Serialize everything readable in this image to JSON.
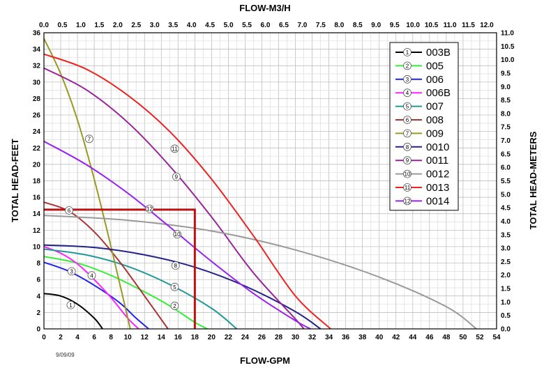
{
  "chart_data": {
    "type": "line",
    "xlabel": "FLOW-GPM",
    "ylabel": "TOTAL HEAD-FEET",
    "x2label": "FLOW-M3/H",
    "y2label": "TOTAL HEAD-METERS",
    "xlim": [
      0,
      54
    ],
    "ylim": [
      0,
      36
    ],
    "x2lim": [
      0,
      12
    ],
    "y2lim": [
      0,
      11
    ],
    "x_ticks": [
      0,
      2,
      4,
      6,
      8,
      10,
      12,
      14,
      16,
      18,
      20,
      22,
      24,
      26,
      28,
      30,
      32,
      34,
      36,
      38,
      40,
      42,
      44,
      46,
      48,
      50,
      52,
      54
    ],
    "y_ticks": [
      0,
      2,
      4,
      6,
      8,
      10,
      12,
      14,
      16,
      18,
      20,
      22,
      24,
      26,
      28,
      30,
      32,
      34,
      36
    ],
    "x2_ticks": [
      "0.0",
      "0.5",
      "1.0",
      "1.5",
      "2.0",
      "2.5",
      "3.0",
      "3.5",
      "4.0",
      "4.5",
      "5.0",
      "5.5",
      "6.0",
      "6.5",
      "7.0",
      "7.5",
      "8.0",
      "8.5",
      "9.0",
      "9.5",
      "10.0",
      "10.5",
      "11.0",
      "11.5",
      "12.0"
    ],
    "y2_ticks": [
      "0.0",
      "0.5",
      "1.0",
      "1.5",
      "2.0",
      "2.5",
      "3.0",
      "3.5",
      "4.0",
      "4.5",
      "5.0",
      "5.5",
      "6.0",
      "6.5",
      "7.0",
      "7.5",
      "8.0",
      "8.5",
      "9.0",
      "9.5",
      "10.0",
      "10.5",
      "11.0"
    ],
    "grid": true,
    "legend_position": "top-right",
    "date_label": "9/09/09",
    "series": [
      {
        "name": "003B",
        "marker": "1",
        "color": "#000000",
        "x": [
          0,
          2,
          4,
          6,
          7
        ],
        "y": [
          4.3,
          4.0,
          3.0,
          1.3,
          0
        ],
        "marker_at": [
          3.2,
          2.9
        ]
      },
      {
        "name": "005",
        "marker": "2",
        "color": "#33ee33",
        "x": [
          0,
          4,
          8,
          12,
          15,
          18,
          19.5
        ],
        "y": [
          8.8,
          8.0,
          6.5,
          4.5,
          2.8,
          0.8,
          0
        ],
        "marker_at": [
          15.6,
          2.8
        ]
      },
      {
        "name": "006",
        "marker": "3",
        "color": "#2222ee",
        "x": [
          0,
          3,
          6,
          9,
          11,
          12.5
        ],
        "y": [
          8.1,
          7.0,
          5.3,
          3.2,
          1.3,
          0
        ],
        "marker_at": [
          3.3,
          7.0
        ]
      },
      {
        "name": "006B",
        "marker": "4",
        "color": "#ff22ff",
        "x": [
          0,
          2,
          4,
          6,
          8,
          10,
          11.3
        ],
        "y": [
          10.0,
          9.2,
          7.9,
          6.0,
          3.8,
          1.3,
          0
        ],
        "marker_at": [
          5.7,
          6.5
        ]
      },
      {
        "name": "007",
        "marker": "5",
        "color": "#229999",
        "x": [
          0,
          5,
          10,
          15,
          20,
          23
        ],
        "y": [
          9.7,
          9.0,
          7.6,
          5.4,
          2.5,
          0
        ],
        "marker_at": [
          15.6,
          5.1
        ]
      },
      {
        "name": "008",
        "marker": "6",
        "color": "#aa3333",
        "x": [
          0,
          3,
          6,
          9,
          12,
          14.8
        ],
        "y": [
          15.4,
          14.3,
          11.8,
          8.2,
          4.0,
          0
        ],
        "marker_at": [
          3.0,
          14.4
        ]
      },
      {
        "name": "009",
        "marker": "7",
        "color": "#999922",
        "x": [
          0,
          2,
          4,
          6,
          8,
          10.3
        ],
        "y": [
          35.3,
          31.0,
          25.4,
          18.2,
          10.0,
          0
        ],
        "marker_at": [
          5.4,
          23.1
        ]
      },
      {
        "name": "0010",
        "marker": "8",
        "color": "#222288",
        "x": [
          0,
          6,
          12,
          18,
          24,
          30,
          33.0
        ],
        "y": [
          10.2,
          9.9,
          9.0,
          7.5,
          5.2,
          2.1,
          0
        ],
        "marker_at": [
          15.7,
          7.7
        ]
      },
      {
        "name": "0011",
        "marker": "9",
        "color": "#992299",
        "x": [
          0,
          5,
          10,
          15,
          20,
          25,
          30,
          31.0
        ],
        "y": [
          31.7,
          29.1,
          25.1,
          19.8,
          13.6,
          6.8,
          1.2,
          0
        ],
        "marker_at": [
          15.8,
          18.5
        ]
      },
      {
        "name": "0012",
        "marker": "10",
        "color": "#999999",
        "x": [
          0,
          10,
          20,
          30,
          40,
          48,
          51.6
        ],
        "y": [
          13.8,
          13.2,
          11.9,
          9.6,
          6.3,
          2.7,
          0
        ],
        "marker_at": [
          15.9,
          11.5
        ]
      },
      {
        "name": "0013",
        "marker": "11",
        "color": "#ee2222",
        "x": [
          0,
          5,
          10,
          15,
          20,
          25,
          30,
          34.2
        ],
        "y": [
          33.4,
          31.6,
          28.4,
          24.0,
          18.2,
          11.3,
          4.0,
          0
        ],
        "marker_at": [
          15.6,
          21.9
        ]
      },
      {
        "name": "0014",
        "marker": "12",
        "color": "#9922ee",
        "x": [
          0,
          5,
          10,
          15,
          20,
          25,
          30,
          31.8
        ],
        "y": [
          22.8,
          20.0,
          16.5,
          12.4,
          8.2,
          4.3,
          1.0,
          0
        ],
        "marker_at": [
          12.6,
          14.6
        ]
      }
    ],
    "highlight": {
      "color": "#bb1111",
      "x": 18,
      "y": 14.5
    }
  }
}
